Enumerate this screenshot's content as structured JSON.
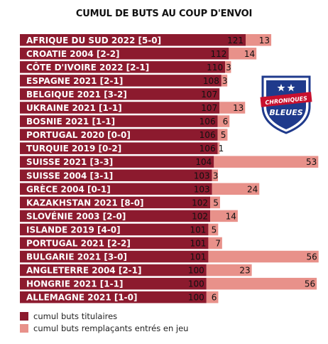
{
  "colors": {
    "starters": "#8c1a2e",
    "substitutes": "#e8918a",
    "bar_text": "#ffffff",
    "value_text": "#111111",
    "badge_blue": "#1f3a8c",
    "badge_red": "#c8102e"
  },
  "badge": {
    "line1": "CHRONIQUES",
    "line2": "BLEUES",
    "icon": "shield-logo-icon"
  },
  "chart_data": {
    "type": "bar",
    "orientation": "horizontal",
    "stacked": true,
    "title": "CUMUL DE BUTS AU COUP D'ENVOI",
    "categories": [
      "AFRIQUE DU SUD 2022 [5-0]",
      "CROATIE 2004 [2-2]",
      "CÔTE D'IVOIRE 2022 [2-1]",
      "ESPAGNE 2021 [2-1]",
      "BELGIQUE 2021 [3-2]",
      "UKRAINE 2021 [1-1]",
      "BOSNIE 2021 [1-1]",
      "PORTUGAL 2020 [0-0]",
      "TURQUIE 2019 [0-2]",
      "SUISSE 2021 [3-3]",
      "SUISSE 2004 [3-1]",
      "GRÈCE 2004 [0-1]",
      "KAZAKHSTAN 2021 [8-0]",
      "SLOVÉNIE 2003 [2-0]",
      "ISLANDE 2019 [4-0]",
      "PORTUGAL 2021 [2-2]",
      "BULGARIE 2021 [3-0]",
      "ANGLETERRE 2004 [2-1]",
      "HONGRIE 2021 [1-1]",
      "ALLEMAGNE 2021 [1-0]"
    ],
    "series": [
      {
        "name": "cumul buts titulaires",
        "values": [
          121,
          112,
          110,
          108,
          107,
          107,
          106,
          106,
          106,
          104,
          103,
          103,
          102,
          102,
          101,
          101,
          101,
          100,
          100,
          100
        ]
      },
      {
        "name": "cumul buts remplaçants entrés en jeu",
        "values": [
          13,
          14,
          3,
          3,
          0,
          13,
          6,
          5,
          1,
          53,
          3,
          24,
          5,
          14,
          5,
          7,
          56,
          23,
          56,
          6
        ]
      }
    ],
    "legend_position": "bottom-left",
    "grid": false
  }
}
